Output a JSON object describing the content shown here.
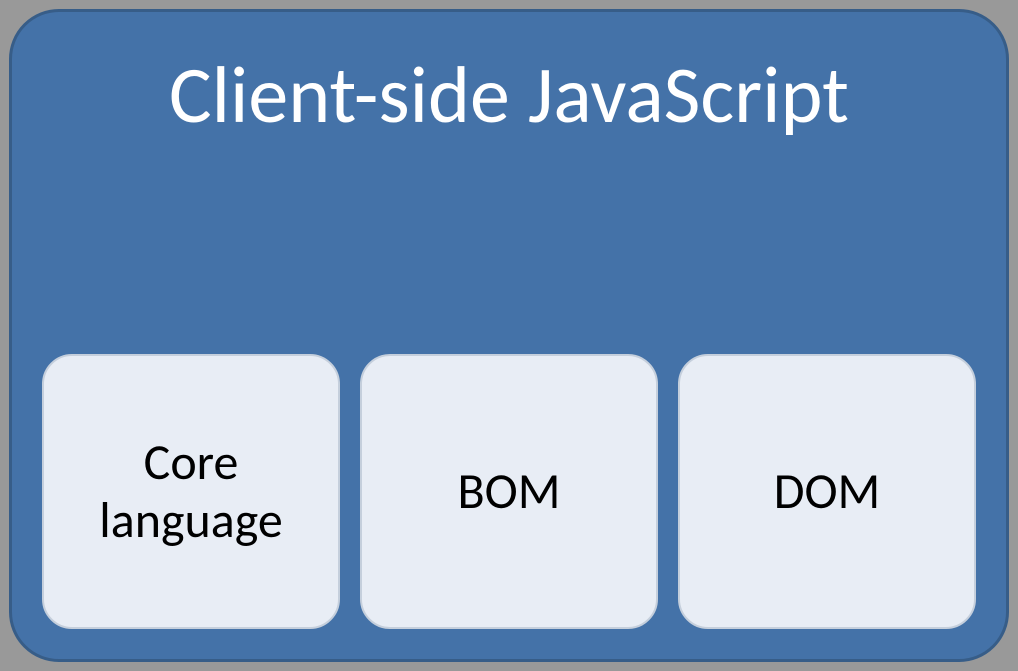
{
  "diagram": {
    "type": "infographic",
    "title": "Client-side JavaScript",
    "containerBg": "#4472a8",
    "containerBorder": "#375d88",
    "containerRadius": 50,
    "titleColor": "#ffffff",
    "titleFontSize": 80,
    "boxBg": "#e8edf5",
    "boxBorder": "#c5cfdc",
    "boxRadius": 30,
    "boxTextColor": "#000000",
    "boxFontSize": 50,
    "boxes": [
      {
        "label": "Core language"
      },
      {
        "label": "BOM"
      },
      {
        "label": "DOM"
      }
    ]
  }
}
